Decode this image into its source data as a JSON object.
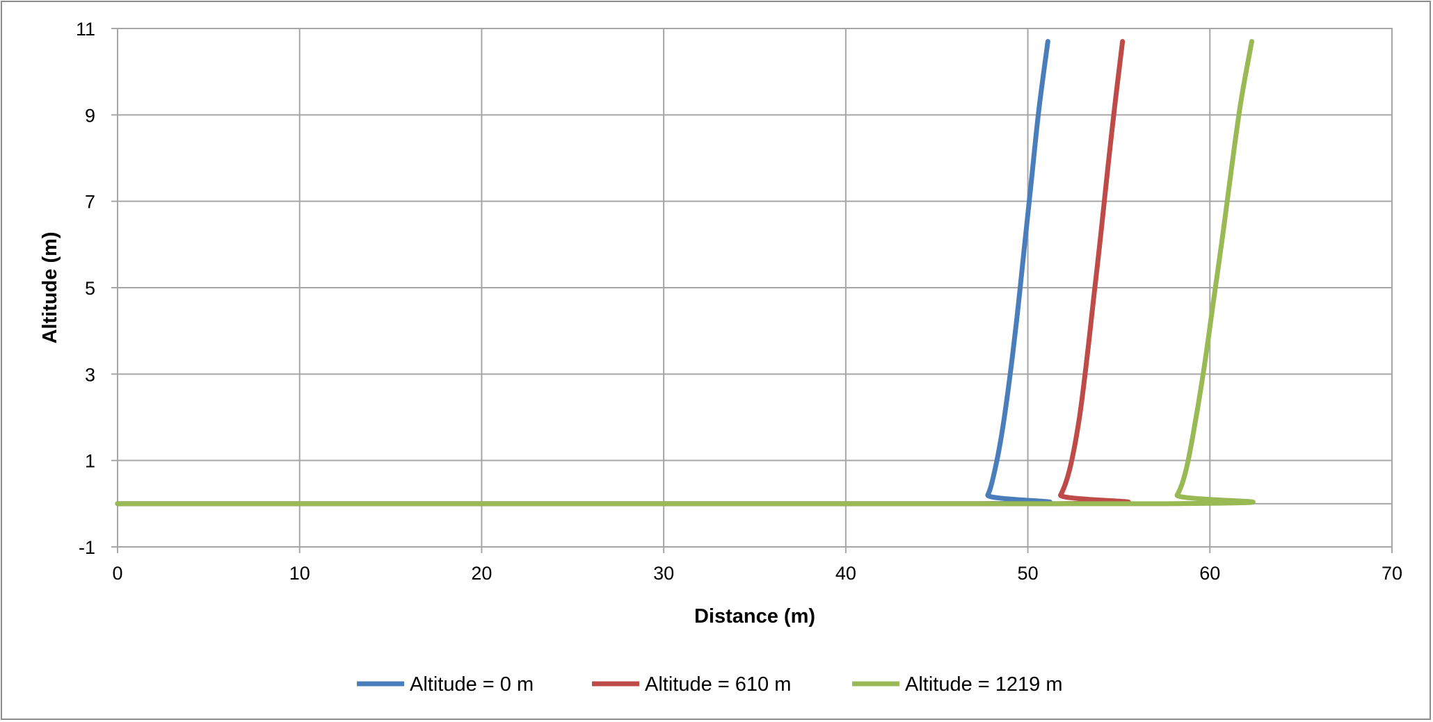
{
  "chart_data": {
    "type": "line",
    "title": "",
    "xlabel": "Distance (m)",
    "ylabel": "Altitude (m)",
    "xlim": [
      0,
      70
    ],
    "ylim": [
      -1,
      11
    ],
    "xticks": [
      0,
      10,
      20,
      30,
      40,
      50,
      60,
      70
    ],
    "yticks": [
      -1,
      1,
      3,
      5,
      7,
      9,
      11
    ],
    "grid": true,
    "legend_position": "bottom",
    "series": [
      {
        "name": "Altitude = 0 m",
        "color": "#4a7ebb",
        "x": [
          0,
          47.3,
          47.8,
          48.2,
          48.6,
          49.0,
          49.4,
          49.8,
          50.2,
          50.6,
          51.1
        ],
        "y": [
          0,
          0,
          0.2,
          0.8,
          1.7,
          2.9,
          4.3,
          5.9,
          7.5,
          9.1,
          10.7
        ]
      },
      {
        "name": "Altitude = 610 m",
        "color": "#be4b48",
        "x": [
          0,
          51.3,
          51.8,
          52.3,
          52.8,
          53.2,
          53.6,
          54.0,
          54.4,
          54.8,
          55.2
        ],
        "y": [
          0,
          0,
          0.2,
          0.8,
          1.9,
          3.2,
          4.7,
          6.2,
          7.8,
          9.3,
          10.7
        ]
      },
      {
        "name": "Altitude = 1219 m",
        "color": "#98b954",
        "x": [
          0,
          57.6,
          58.2,
          58.7,
          59.2,
          59.7,
          60.2,
          60.7,
          61.2,
          61.7,
          62.3
        ],
        "y": [
          0,
          0,
          0.2,
          0.8,
          1.9,
          3.2,
          4.7,
          6.2,
          7.8,
          9.3,
          10.7
        ]
      }
    ]
  }
}
